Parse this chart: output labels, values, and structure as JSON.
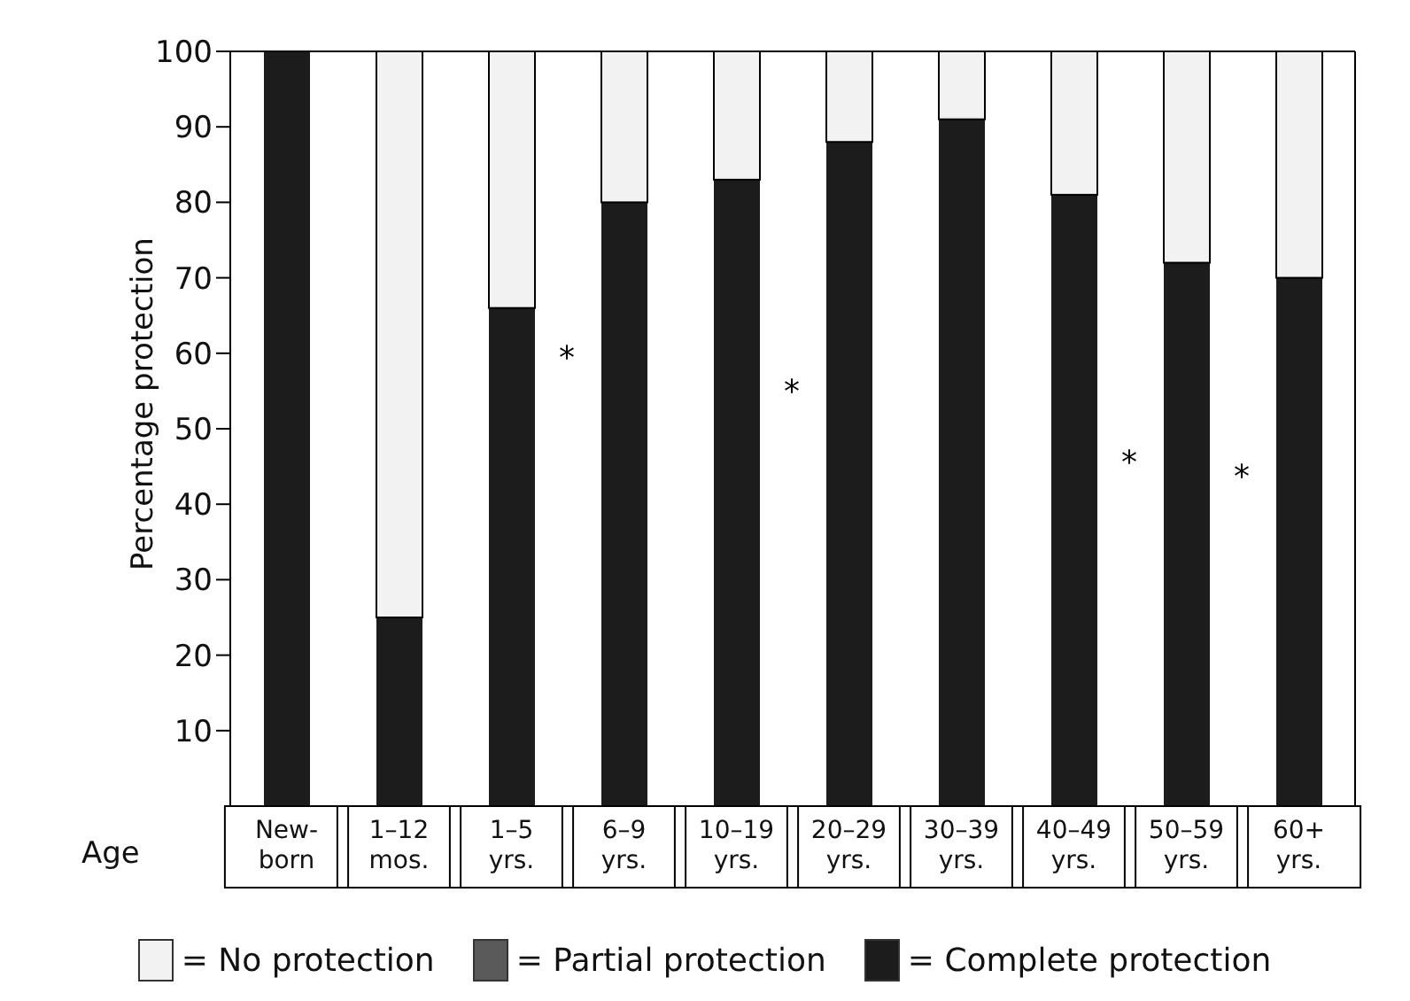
{
  "chart_data": {
    "type": "bar",
    "stacked": true,
    "ylabel": "Percentage protection",
    "xlabel": "Age",
    "categories": [
      "New-\nborn",
      "1–12\nmos.",
      "1–5\nyrs.",
      "6–9\nyrs.",
      "10–19\nyrs.",
      "20–29\nyrs.",
      "30–39\nyrs.",
      "40–49\nyrs.",
      "50–59\nyrs.",
      "60+\nyrs."
    ],
    "series": [
      {
        "name": "= Complete protection",
        "color": "#1c1c1c",
        "values": [
          100,
          25,
          66,
          80,
          83,
          88,
          91,
          81,
          72,
          70
        ]
      },
      {
        "name": "= Partial protection",
        "color": "#5a5a5a",
        "values": [
          null,
          null,
          null,
          null,
          null,
          null,
          null,
          null,
          null,
          null
        ]
      },
      {
        "name": "= No protection",
        "color": "#f2f2f2",
        "values": [
          0,
          75,
          34,
          20,
          17,
          12,
          9,
          19,
          28,
          30
        ]
      }
    ],
    "ylim": [
      0,
      100
    ],
    "yticks": [
      10,
      20,
      30,
      40,
      50,
      60,
      70,
      80,
      90,
      100
    ],
    "grid": false,
    "legend": "bottom",
    "annotations": [
      "*",
      "*",
      "*",
      "*"
    ]
  }
}
